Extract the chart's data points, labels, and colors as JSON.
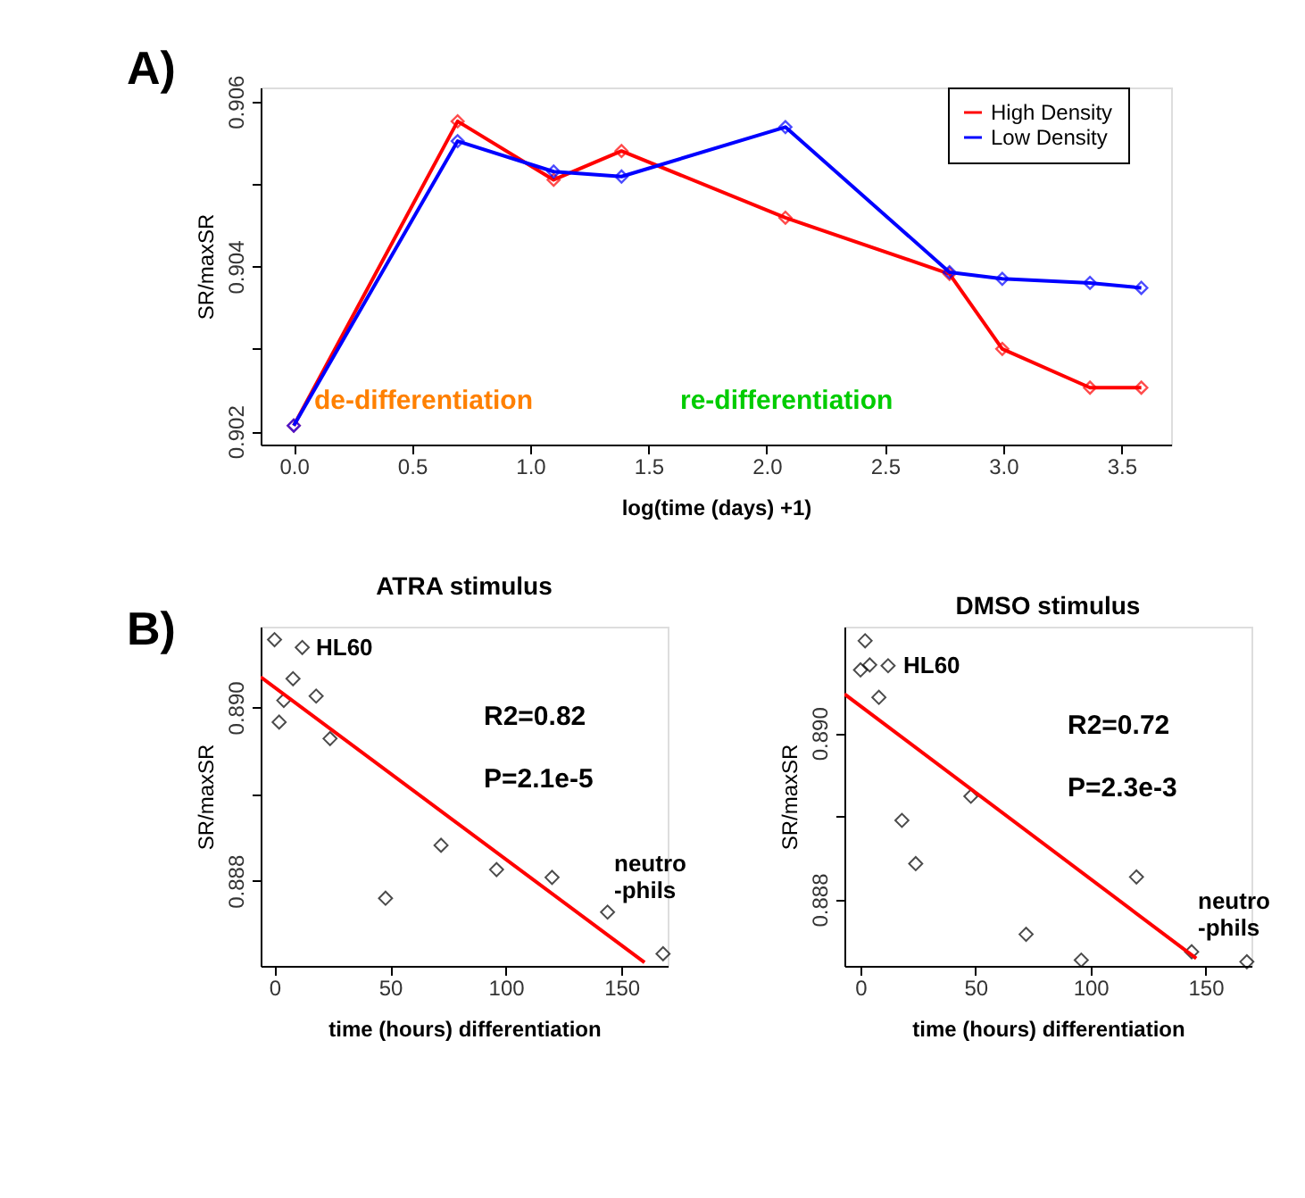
{
  "chart_data": [
    {
      "type": "line",
      "xlabel": "log(time (days) +1)",
      "ylabel": "SR/maxSR",
      "x": [
        0,
        0.693,
        1.099,
        1.386,
        2.079,
        2.773,
        2.996,
        3.367,
        3.584
      ],
      "series": [
        {
          "name": "High Density",
          "color": "#ff0000",
          "values": [
            0.90207,
            0.90576,
            0.90505,
            0.9054,
            0.90459,
            0.90391,
            0.903,
            0.90253,
            0.90253
          ]
        },
        {
          "name": "Low Density",
          "color": "#0000ff",
          "values": [
            0.90207,
            0.90552,
            0.90515,
            0.90509,
            0.90569,
            0.90393,
            0.90385,
            0.9038,
            0.90374
          ]
        }
      ],
      "xlim": [
        -0.14,
        3.71
      ],
      "ylim": [
        0.90184,
        0.90617
      ],
      "xticks": [
        {
          "value": 0,
          "label": "0.0"
        },
        {
          "value": 0.5,
          "label": "0.5"
        },
        {
          "value": 1,
          "label": "1.0"
        },
        {
          "value": 1.5,
          "label": "1.5"
        },
        {
          "value": 2,
          "label": "2.0"
        },
        {
          "value": 2.5,
          "label": "2.5"
        },
        {
          "value": 3,
          "label": "3.0"
        },
        {
          "value": 3.5,
          "label": "3.5"
        }
      ],
      "yticks": [
        0.902,
        {
          "value": 0.903,
          "label": null
        },
        0.904,
        {
          "value": 0.905,
          "label": null
        },
        0.906
      ],
      "annotations": [
        "A)",
        "de-differentiation",
        "re-differentiation"
      ],
      "legend": "top right",
      "marker": "diamond",
      "line_style": "solid",
      "grid": false
    },
    {
      "type": "scatter",
      "title": "ATRA stimulus",
      "xlabel": "time (hours) differentiation",
      "ylabel": "SR/maxSR",
      "series": [
        {
          "type": "scatter",
          "color": "#000000",
          "x": [
            0,
            2,
            4,
            8,
            12,
            18,
            24,
            48,
            72,
            96,
            120,
            144,
            168
          ],
          "values": [
            0.89078,
            0.88983,
            0.89008,
            0.89033,
            0.89069,
            0.89013,
            0.88964,
            0.8878,
            0.88841,
            0.88813,
            0.88804,
            0.88764,
            0.88716
          ]
        },
        {
          "type": "line",
          "color": "#ff0000",
          "x": [
            -6,
            160
          ],
          "values": [
            0.89035,
            0.88706
          ],
          "marker": "none",
          "line_style": "solid"
        }
      ],
      "xlim": [
        -6,
        170
      ],
      "ylim": [
        0.88702,
        0.89093
      ],
      "xticks": [
        0,
        50,
        100,
        150
      ],
      "yticks": [
        0.888,
        {
          "value": 0.889,
          "label": null
        },
        {
          "value": 0.89,
          "label": "0.890"
        }
      ],
      "annotations": [
        "B)",
        "R2=0.82",
        "P=2.1e-5",
        "HL60",
        "neutro\n-phils"
      ],
      "marker": "diamond",
      "grid": false
    },
    {
      "type": "scatter",
      "title": "DMSO stimulus",
      "xlabel": "time (hours) differentiation",
      "ylabel": "SR/maxSR",
      "series": [
        {
          "type": "scatter",
          "color": "#000000",
          "x": [
            0,
            2,
            4,
            8,
            12,
            18,
            24,
            48,
            72,
            96,
            120,
            144,
            168
          ],
          "values": [
            0.89076,
            0.89111,
            0.89082,
            0.89043,
            0.89081,
            0.88895,
            0.88843,
            0.88924,
            0.88758,
            0.88727,
            0.88827,
            0.88737,
            0.88725
          ]
        },
        {
          "type": "line",
          "color": "#ff0000",
          "x": [
            -7,
            146
          ],
          "values": [
            0.89047,
            0.88729
          ],
          "marker": "none",
          "line_style": "solid"
        }
      ],
      "xlim": [
        -7,
        170
      ],
      "ylim": [
        0.8872,
        0.89128
      ],
      "xticks": [
        0,
        50,
        100,
        150
      ],
      "yticks": [
        0.888,
        {
          "value": 0.889,
          "label": null
        },
        {
          "value": 0.89,
          "label": "0.890"
        }
      ],
      "annotations": [
        "R2=0.72",
        "P=2.3e-3",
        "HL60",
        "neutro\n-phils"
      ],
      "marker": "diamond",
      "grid": false
    }
  ]
}
